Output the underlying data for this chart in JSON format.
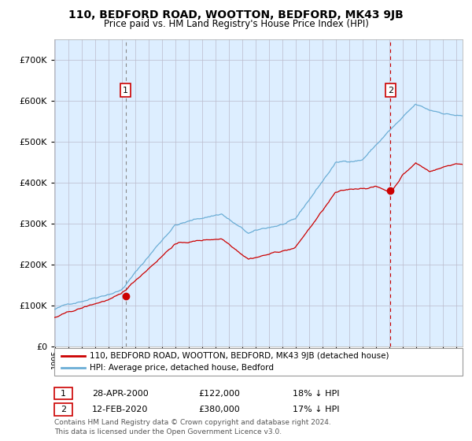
{
  "title": "110, BEDFORD ROAD, WOOTTON, BEDFORD, MK43 9JB",
  "subtitle": "Price paid vs. HM Land Registry's House Price Index (HPI)",
  "legend_line1": "110, BEDFORD ROAD, WOOTTON, BEDFORD, MK43 9JB (detached house)",
  "legend_line2": "HPI: Average price, detached house, Bedford",
  "annotation1_date": "28-APR-2000",
  "annotation1_price": "£122,000",
  "annotation1_hpi": "18% ↓ HPI",
  "annotation2_date": "12-FEB-2020",
  "annotation2_price": "£380,000",
  "annotation2_hpi": "17% ↓ HPI",
  "footnote1": "Contains HM Land Registry data © Crown copyright and database right 2024.",
  "footnote2": "This data is licensed under the Open Government Licence v3.0.",
  "hpi_color": "#6baed6",
  "price_color": "#cc0000",
  "dot_color": "#cc0000",
  "bg_color": "#ddeeff",
  "grid_color": "#bbbbcc",
  "vline1_color": "#888888",
  "vline2_color": "#cc0000",
  "ylim": [
    0,
    750000
  ],
  "yticks": [
    0,
    100000,
    200000,
    300000,
    400000,
    500000,
    600000,
    700000
  ],
  "xlim_start": 1995.0,
  "xlim_end": 2025.5,
  "sale1_x": 2000.32,
  "sale1_y": 122000,
  "sale2_x": 2020.12,
  "sale2_y": 380000
}
